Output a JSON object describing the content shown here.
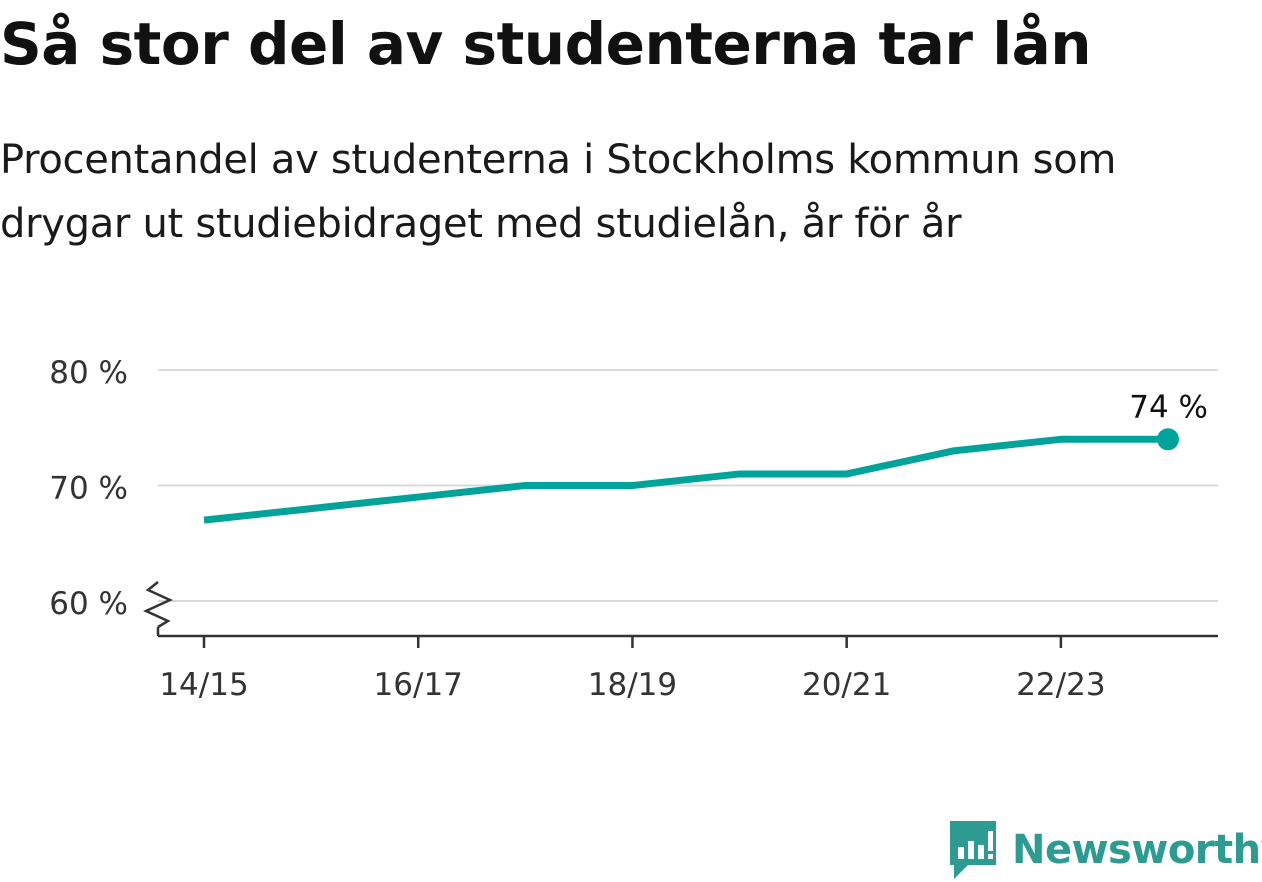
{
  "title": "Så stor del av studenterna tar lån",
  "subtitle": "Procentandel av studenterna i Stockholms kommun som drygar ut studiebidraget med studielån, år för år",
  "brand": {
    "name": "Newsworthy",
    "icon": "newsworthy-logo-icon",
    "color": "#2c9c92"
  },
  "chart_data": {
    "type": "line",
    "x": [
      "14/15",
      "15/16",
      "16/17",
      "17/18",
      "18/19",
      "19/20",
      "20/21",
      "21/22",
      "22/23",
      "23/24"
    ],
    "x_tick_labels": [
      "14/15",
      "16/17",
      "18/19",
      "20/21",
      "22/23"
    ],
    "series": [
      {
        "values": [
          67,
          68,
          69,
          70,
          70,
          71,
          71,
          73,
          74,
          74
        ],
        "color": "#00a39a"
      }
    ],
    "ylim": [
      60,
      80
    ],
    "y_ticks": [
      60,
      70,
      80
    ],
    "y_tick_labels": [
      "60 %",
      "70 %",
      "80 %"
    ],
    "end_label": "74 %",
    "axis_break": true,
    "grid": true,
    "xlabel": "",
    "ylabel": ""
  }
}
